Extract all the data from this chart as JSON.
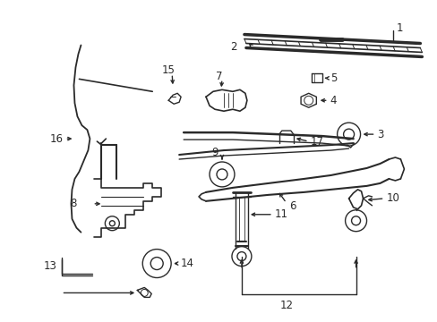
{
  "bg_color": "#ffffff",
  "line_color": "#2a2a2a",
  "fig_width": 4.89,
  "fig_height": 3.6,
  "dpi": 100,
  "font_size": 8.5,
  "lw": 1.0
}
